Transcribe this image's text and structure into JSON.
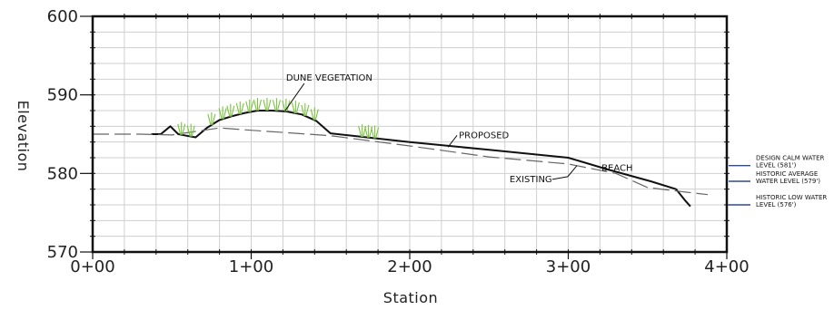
{
  "chart_data": {
    "type": "line",
    "xlabel": "Station",
    "ylabel": "Elevation",
    "xlim": [
      0,
      400
    ],
    "ylim": [
      570,
      600
    ],
    "x_ticks": [
      {
        "value": 0,
        "label": "0+00"
      },
      {
        "value": 100,
        "label": "1+00"
      },
      {
        "value": 200,
        "label": "2+00"
      },
      {
        "value": 300,
        "label": "3+00"
      },
      {
        "value": 400,
        "label": "4+00"
      }
    ],
    "y_ticks": [
      {
        "value": 570,
        "label": "570"
      },
      {
        "value": 580,
        "label": "580"
      },
      {
        "value": 590,
        "label": "590"
      },
      {
        "value": 600,
        "label": "600"
      }
    ],
    "grid": true,
    "series": [
      {
        "name": "PROPOSED",
        "style": "solid",
        "color": "#111111",
        "x": [
          37,
          43,
          49,
          54,
          59,
          65,
          72,
          80,
          88,
          96,
          104,
          113,
          122,
          132,
          141,
          150,
          200,
          250,
          300,
          325,
          352,
          368,
          374,
          377
        ],
        "y": [
          585.0,
          585.0,
          586.0,
          585.0,
          584.8,
          584.6,
          585.8,
          586.8,
          587.3,
          587.7,
          588.0,
          588.0,
          587.9,
          587.5,
          586.7,
          585.1,
          584.0,
          583.0,
          582.0,
          580.5,
          579.0,
          578.0,
          576.5,
          575.8
        ]
      },
      {
        "name": "EXISTING",
        "style": "dashed",
        "color": "#666666",
        "x": [
          0,
          30,
          50,
          80,
          100,
          150,
          200,
          250,
          300,
          330,
          350,
          375,
          388
        ],
        "y": [
          585.0,
          585.0,
          584.9,
          585.8,
          585.5,
          584.8,
          583.5,
          582.1,
          581.2,
          580.0,
          578.2,
          577.6,
          577.3
        ]
      }
    ],
    "annotations": [
      {
        "text": "DUNE VEGETATION",
        "x": 122,
        "y": 591.8
      },
      {
        "text": "PROPOSED",
        "x": 231,
        "y": 584.5
      },
      {
        "text": "BEACH",
        "x": 321,
        "y": 580.3
      },
      {
        "text": "EXISTING",
        "x": 263,
        "y": 578.9
      }
    ],
    "water_levels": [
      {
        "label": "DESIGN CALM WATER",
        "label2": "LEVEL (581')",
        "elevation": 581,
        "color": "#2b4a9c"
      },
      {
        "label": "HISTORIC AVERAGE",
        "label2": "WATER LEVEL (579')",
        "elevation": 579,
        "color": "#2b4a9c"
      },
      {
        "label": "HISTORIC LOW WATER",
        "label2": "LEVEL (576')",
        "elevation": 576,
        "color": "#2b4a9c"
      }
    ],
    "vegetation_color": "#7cc242"
  }
}
